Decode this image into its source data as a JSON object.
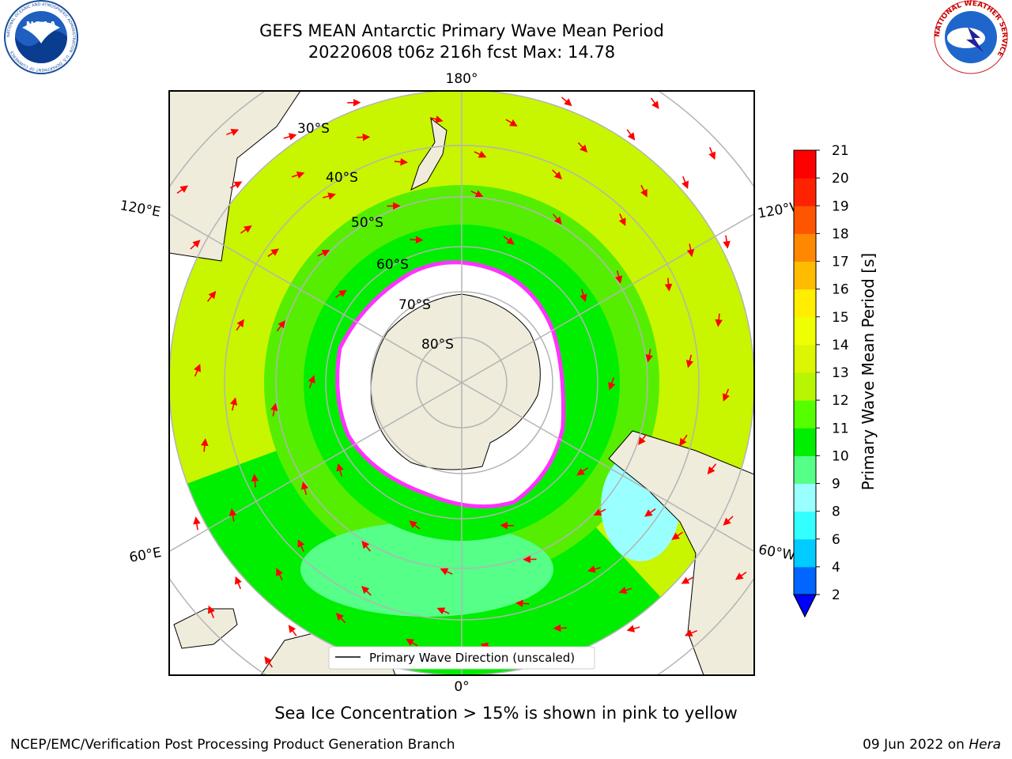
{
  "title": {
    "line1": "GEFS MEAN Antarctic Primary Wave Mean Period",
    "line2": "20220608 t06z 216h fcst   Max: 14.78"
  },
  "logos": {
    "left": "NOAA",
    "left_ring_text": "NATIONAL OCEANIC AND ATMOSPHERIC ADMINISTRATION · U.S. DEPARTMENT OF COMMERCE",
    "right_ring_text": "NATIONAL WEATHER SERVICE"
  },
  "map": {
    "longitude_labels": {
      "top": "180°",
      "bottom": "0°",
      "left_upper": "120°E",
      "left_lower": "60°E",
      "right_upper": "120°W",
      "right_lower": "60°W"
    },
    "latitude_labels": [
      "30°S",
      "40°S",
      "50°S",
      "60°S",
      "70°S",
      "80°S"
    ],
    "legend": "Primary Wave Direction (unscaled)",
    "colors": {
      "land": "#efecdc",
      "ice": "#ffffff",
      "ice_edge": "#ff33ff",
      "arrow": "#ff0000",
      "grid": "#b4b4b4"
    }
  },
  "colorbar": {
    "label": "Primary Wave Mean Period [s]",
    "ticks": [
      "2",
      "4",
      "6",
      "8",
      "9",
      "10",
      "11",
      "12",
      "13",
      "14",
      "15",
      "16",
      "17",
      "18",
      "19",
      "20",
      "21"
    ],
    "colors": [
      "#0066ff",
      "#00ccff",
      "#33ffff",
      "#99ffff",
      "#55ff88",
      "#00ee00",
      "#55ff00",
      "#b8f500",
      "#dcf500",
      "#f0ff00",
      "#ffee00",
      "#ffbb00",
      "#ff8800",
      "#ff5500",
      "#ff2200",
      "#ff0000"
    ],
    "extend_color": "#0000ff"
  },
  "caption": "Sea Ice Concentration > 15% is shown in pink to yellow",
  "credit": {
    "left": "NCEP/EMC/Verification Post Processing Product Generation Branch",
    "right_date": "09 Jun 2022 on ",
    "right_host": "Hera"
  }
}
